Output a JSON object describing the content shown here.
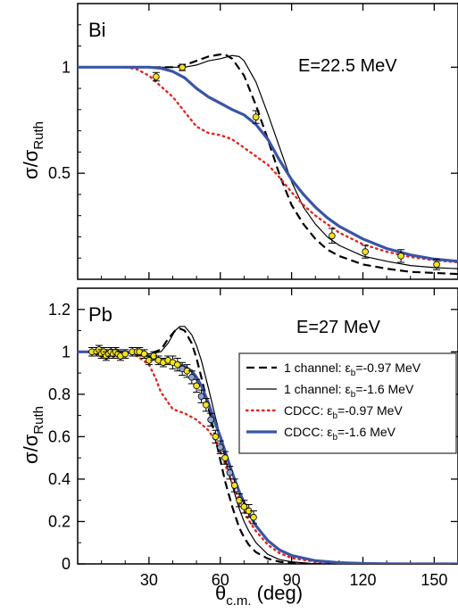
{
  "chart_data": [
    {
      "type": "line",
      "panel_label": "Bi",
      "energy_label": "E=22.5 MeV",
      "ylabel": "σ/σ",
      "ylabel_sub": "Ruth",
      "xlim": [
        0,
        160
      ],
      "ylim": [
        0,
        1.3
      ],
      "yticks": [
        0.5,
        1
      ],
      "ytick_labels": [
        "0.5",
        "1"
      ],
      "series": [
        {
          "key": "s1",
          "style": "dashed-black",
          "x": [
            0,
            20,
            30,
            40,
            45,
            50,
            55,
            60,
            62,
            65,
            70,
            75,
            80,
            85,
            90,
            95,
            100,
            105,
            110,
            120,
            130,
            140,
            150,
            160
          ],
          "y": [
            1.0,
            1.0,
            1.0,
            1.0,
            1.01,
            1.03,
            1.05,
            1.06,
            1.06,
            1.04,
            0.96,
            0.82,
            0.66,
            0.49,
            0.35,
            0.26,
            0.19,
            0.14,
            0.11,
            0.07,
            0.05,
            0.035,
            0.03,
            0.025
          ]
        },
        {
          "key": "s2",
          "style": "thin-black",
          "x": [
            0,
            20,
            30,
            40,
            45,
            50,
            55,
            60,
            65,
            68,
            70,
            75,
            80,
            85,
            90,
            95,
            100,
            105,
            110,
            120,
            130,
            140,
            150,
            160
          ],
          "y": [
            1.0,
            1.0,
            1.0,
            1.0,
            1.0,
            1.01,
            1.03,
            1.04,
            1.055,
            1.05,
            1.03,
            0.93,
            0.78,
            0.62,
            0.46,
            0.34,
            0.26,
            0.2,
            0.16,
            0.11,
            0.085,
            0.065,
            0.055,
            0.05
          ]
        },
        {
          "key": "s3",
          "style": "dotted-red",
          "x": [
            0,
            20,
            25,
            30,
            35,
            40,
            45,
            50,
            55,
            60,
            65,
            70,
            75,
            80,
            85,
            90,
            95,
            100,
            105,
            110,
            120,
            130,
            140,
            150,
            160
          ],
          "y": [
            1.0,
            1.0,
            0.99,
            0.96,
            0.91,
            0.86,
            0.79,
            0.72,
            0.69,
            0.68,
            0.66,
            0.62,
            0.58,
            0.54,
            0.48,
            0.41,
            0.35,
            0.3,
            0.26,
            0.22,
            0.165,
            0.13,
            0.105,
            0.09,
            0.08
          ]
        },
        {
          "key": "s4",
          "style": "thick-blue",
          "x": [
            0,
            20,
            30,
            35,
            40,
            45,
            50,
            55,
            60,
            65,
            70,
            75,
            80,
            85,
            90,
            95,
            100,
            105,
            110,
            120,
            130,
            140,
            150,
            160
          ],
          "y": [
            1.0,
            1.0,
            1.0,
            0.995,
            0.98,
            0.95,
            0.9,
            0.86,
            0.83,
            0.8,
            0.775,
            0.73,
            0.66,
            0.56,
            0.47,
            0.4,
            0.34,
            0.29,
            0.25,
            0.19,
            0.145,
            0.115,
            0.095,
            0.085
          ]
        }
      ],
      "points": {
        "x": [
          33,
          44,
          75,
          107,
          121,
          136,
          151
        ],
        "y": [
          0.955,
          0.999,
          0.765,
          0.205,
          0.13,
          0.11,
          0.07
        ],
        "err": [
          0.02,
          0.015,
          0.03,
          0.035,
          0.03,
          0.03,
          0.025
        ]
      }
    },
    {
      "type": "line",
      "panel_label": "Pb",
      "energy_label": "E=27 MeV",
      "ylabel": "σ/σ",
      "ylabel_sub": "Ruth",
      "xlabel": "θ",
      "xlabel_sub": "c.m.",
      "xlabel_unit": " (deg)",
      "xlim": [
        0,
        160
      ],
      "ylim": [
        0,
        1.3
      ],
      "xticks": [
        30,
        60,
        90,
        120,
        150
      ],
      "xtick_labels": [
        "30",
        "60",
        "90",
        "120",
        "150"
      ],
      "yticks": [
        0,
        0.2,
        0.4,
        0.6,
        0.8,
        1,
        1.2
      ],
      "ytick_labels": [
        "0",
        "0.2",
        "0.4",
        "0.6",
        "0.8",
        "1",
        "1.2"
      ],
      "legend_position": "right",
      "series": [
        {
          "key": "s1",
          "style": "dashed-black",
          "x": [
            0,
            20,
            30,
            35,
            38,
            41,
            43,
            45,
            48,
            50,
            52,
            55,
            58,
            60,
            62,
            65,
            68,
            70,
            72,
            75,
            80,
            85,
            90,
            100,
            110,
            120,
            130,
            140,
            150,
            160
          ],
          "y": [
            1.0,
            1.0,
            0.99,
            1.01,
            1.06,
            1.1,
            1.11,
            1.1,
            1.04,
            0.97,
            0.88,
            0.74,
            0.59,
            0.49,
            0.39,
            0.27,
            0.17,
            0.125,
            0.09,
            0.055,
            0.025,
            0.01,
            0.005,
            0,
            0,
            0,
            0,
            0,
            0,
            0
          ]
        },
        {
          "key": "s2",
          "style": "thin-black",
          "x": [
            0,
            20,
            30,
            35,
            38,
            41,
            43,
            45,
            48,
            50,
            52,
            55,
            58,
            60,
            62,
            65,
            68,
            70,
            72,
            75,
            80,
            85,
            90,
            100,
            110,
            120,
            130,
            140,
            150,
            160
          ],
          "y": [
            1.0,
            1.0,
            0.99,
            1.0,
            1.04,
            1.1,
            1.12,
            1.12,
            1.08,
            1.03,
            0.96,
            0.83,
            0.69,
            0.6,
            0.5,
            0.37,
            0.26,
            0.2,
            0.155,
            0.1,
            0.045,
            0.02,
            0.01,
            0,
            0,
            0,
            0,
            0,
            0,
            0
          ]
        },
        {
          "key": "s3",
          "style": "dotted-red",
          "x": [
            0,
            20,
            25,
            30,
            33,
            35,
            40,
            45,
            50,
            55,
            58,
            60,
            62,
            65,
            68,
            70,
            72,
            75,
            80,
            85,
            90,
            100,
            110,
            120,
            130,
            140,
            150,
            160
          ],
          "y": [
            1.0,
            1.0,
            0.98,
            0.94,
            0.87,
            0.81,
            0.73,
            0.71,
            0.68,
            0.63,
            0.58,
            0.53,
            0.47,
            0.38,
            0.3,
            0.25,
            0.205,
            0.155,
            0.09,
            0.05,
            0.028,
            0.01,
            0.004,
            0.001,
            0,
            0,
            0,
            0
          ]
        },
        {
          "key": "s4",
          "style": "thick-blue",
          "x": [
            0,
            20,
            30,
            35,
            40,
            45,
            48,
            50,
            52,
            55,
            58,
            60,
            62,
            65,
            68,
            70,
            72,
            75,
            80,
            85,
            90,
            100,
            110,
            120,
            130,
            140,
            150,
            160
          ],
          "y": [
            1.0,
            1.0,
            0.98,
            0.96,
            0.95,
            0.93,
            0.91,
            0.88,
            0.84,
            0.76,
            0.66,
            0.6,
            0.53,
            0.43,
            0.34,
            0.29,
            0.24,
            0.18,
            0.11,
            0.065,
            0.04,
            0.015,
            0.006,
            0.002,
            0.001,
            0,
            0,
            0
          ]
        }
      ],
      "points": {
        "x": [
          6,
          8,
          9,
          10,
          11,
          12,
          13,
          14,
          15,
          16,
          17,
          18,
          20,
          23,
          25,
          26,
          28,
          30,
          32,
          34,
          36,
          38,
          40,
          42,
          44,
          46,
          48,
          50,
          52,
          54,
          56,
          58,
          60,
          62,
          64,
          66,
          68,
          70,
          72,
          74
        ],
        "y": [
          1.0,
          1.0,
          1.01,
          0.99,
          1.0,
          0.98,
          0.99,
          1.0,
          0.99,
          1.0,
          0.99,
          0.98,
          0.99,
          1.0,
          1.0,
          1.0,
          0.99,
          0.96,
          0.98,
          0.96,
          0.95,
          0.96,
          0.95,
          0.94,
          0.92,
          0.91,
          0.88,
          0.84,
          0.79,
          0.75,
          0.68,
          0.6,
          0.55,
          0.5,
          0.43,
          0.37,
          0.3,
          0.27,
          0.25,
          0.22
        ],
        "err": [
          0.02,
          0.02,
          0.02,
          0.02,
          0.02,
          0.02,
          0.02,
          0.02,
          0.02,
          0.02,
          0.02,
          0.02,
          0.02,
          0.02,
          0.02,
          0.02,
          0.02,
          0.02,
          0.02,
          0.02,
          0.02,
          0.02,
          0.03,
          0.03,
          0.03,
          0.03,
          0.03,
          0.03,
          0.03,
          0.03,
          0.03,
          0.03,
          0.03,
          0.03,
          0.03,
          0.03,
          0.03,
          0.03,
          0.03,
          0.03
        ]
      }
    }
  ],
  "legend": [
    {
      "key": "s1",
      "prefix": "1 channel: ε",
      "sub": "b",
      "suffix": "=-0.97 MeV"
    },
    {
      "key": "s2",
      "prefix": "1 channel: ε",
      "sub": "b",
      "suffix": "=-1.6 MeV"
    },
    {
      "key": "s3",
      "prefix": "CDCC: ε",
      "sub": "b",
      "suffix": "=-0.97 MeV"
    },
    {
      "key": "s4",
      "prefix": "CDCC: ε",
      "sub": "b",
      "suffix": "=-1.6 MeV"
    }
  ],
  "colors": {
    "red": "#e8231b",
    "blue": "#3a55a6",
    "black": "#000000",
    "point_fill": "#f4e21b",
    "point_fill_alt": "#8fa3d6"
  }
}
